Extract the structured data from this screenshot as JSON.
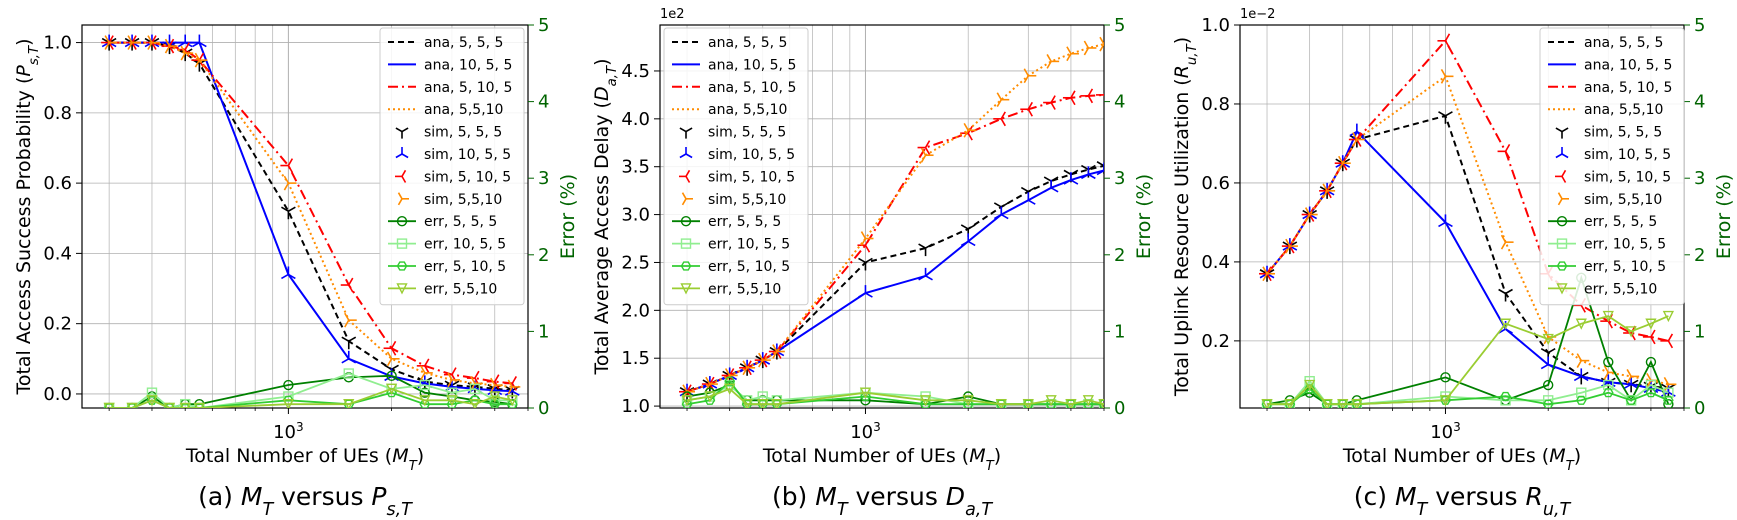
{
  "colors": {
    "ana_555": "#000000",
    "ana_1055": "#0000ff",
    "ana_5105": "#ff0000",
    "ana_5510": "#ff8c00",
    "err_555": "#008000",
    "err_1055": "#90ee90",
    "err_5105": "#32cd32",
    "err_5510": "#9acd32",
    "right_axis": "#006400",
    "grid": "#b0b0b0"
  },
  "legend_labels": [
    "ana, 5, 5, 5",
    "ana, 10, 5, 5",
    "ana, 5, 10, 5",
    "ana, 5,5,10",
    "sim, 5, 5, 5",
    "sim, 10, 5, 5",
    "sim, 5, 10, 5",
    "sim, 5,5,10",
    "err, 5, 5, 5",
    "err, 10, 5, 5",
    "err, 5, 10, 5",
    "err, 5,5,10"
  ],
  "chart_data": [
    {
      "type": "line",
      "caption": "(a) M_T versus P_s,T",
      "xlabel": "Total Number of UEs (M_T)",
      "ylabel": "Total Access Success Probability (P_s,T)",
      "y2label": "Error (%)",
      "xscale": "log",
      "xlim": [
        250,
        5000
      ],
      "xtick_label": "10^3",
      "ylim": [
        -0.04,
        1.05
      ],
      "yticks": [
        "0.0",
        "0.2",
        "0.4",
        "0.6",
        "0.8",
        "1.0"
      ],
      "y2lim": [
        0,
        5
      ],
      "y2ticks": [
        "0",
        "1",
        "2",
        "3",
        "4",
        "5"
      ],
      "y_offset": "",
      "grid": true,
      "legend": "top-right",
      "x": [
        300,
        350,
        400,
        450,
        500,
        550,
        1000,
        1500,
        2000,
        2500,
        3000,
        3500,
        4000,
        4500
      ],
      "series": [
        {
          "name": "ana, 5, 5, 5",
          "values": [
            1.0,
            1.0,
            1.0,
            0.99,
            0.97,
            0.94,
            0.52,
            0.15,
            0.07,
            0.035,
            0.025,
            0.02,
            0.015,
            0.01
          ]
        },
        {
          "name": "ana, 10, 5, 5",
          "values": [
            1.0,
            1.0,
            1.0,
            1.0,
            1.0,
            1.0,
            0.34,
            0.1,
            0.05,
            0.03,
            0.02,
            0.015,
            0.01,
            0.008
          ]
        },
        {
          "name": "ana, 5, 10, 5",
          "values": [
            1.0,
            1.0,
            1.0,
            0.99,
            0.98,
            0.95,
            0.65,
            0.31,
            0.13,
            0.08,
            0.055,
            0.045,
            0.035,
            0.03
          ]
        },
        {
          "name": "ana, 5,5,10",
          "values": [
            1.0,
            1.0,
            1.0,
            0.99,
            0.97,
            0.95,
            0.6,
            0.21,
            0.1,
            0.06,
            0.04,
            0.03,
            0.025,
            0.02
          ]
        },
        {
          "name": "err, 5, 5, 5",
          "axis": "right",
          "values": [
            0.0,
            0.0,
            0.15,
            0.0,
            0.05,
            0.05,
            0.3,
            0.4,
            0.42,
            0.2,
            0.15,
            0.1,
            0.08,
            0.05
          ]
        },
        {
          "name": "err, 10, 5, 5",
          "axis": "right",
          "values": [
            0.0,
            0.0,
            0.2,
            0.0,
            0.05,
            0.0,
            0.15,
            0.45,
            0.25,
            0.3,
            0.2,
            0.25,
            0.1,
            0.1
          ]
        },
        {
          "name": "err, 5, 10, 5",
          "axis": "right",
          "values": [
            0.0,
            0.0,
            0.1,
            0.0,
            0.0,
            0.0,
            0.1,
            0.05,
            0.2,
            0.05,
            0.05,
            0.1,
            0.05,
            0.05
          ]
        },
        {
          "name": "err, 5,5,10",
          "axis": "right",
          "values": [
            0.0,
            0.0,
            0.1,
            0.0,
            0.0,
            0.0,
            0.05,
            0.05,
            0.25,
            0.1,
            0.1,
            0.05,
            0.15,
            0.1
          ]
        }
      ]
    },
    {
      "type": "line",
      "caption": "(b) M_T versus D_a,T",
      "xlabel": "Total Number of UEs (M_T)",
      "ylabel": "Total Average Access Delay (D_a,T)",
      "y2label": "Error (%)",
      "xscale": "log",
      "xlim": [
        250,
        5000
      ],
      "xtick_label": "10^3",
      "ylim": [
        0.98,
        4.98
      ],
      "yticks": [
        "1.0",
        "1.5",
        "2.0",
        "2.5",
        "3.0",
        "3.5",
        "4.0",
        "4.5"
      ],
      "y2lim": [
        0,
        5
      ],
      "y2ticks": [
        "0",
        "1",
        "2",
        "3",
        "4",
        "5"
      ],
      "y_offset": "1e2",
      "grid": true,
      "legend": "top-left",
      "x": [
        300,
        350,
        400,
        450,
        500,
        550,
        1000,
        1500,
        2000,
        2500,
        3000,
        3500,
        4000,
        4500,
        5000
      ],
      "series": [
        {
          "name": "ana, 5, 5, 5",
          "values": [
            1.15,
            1.23,
            1.32,
            1.4,
            1.48,
            1.57,
            2.5,
            2.65,
            2.85,
            3.08,
            3.24,
            3.35,
            3.42,
            3.47,
            3.51
          ]
        },
        {
          "name": "ana, 10, 5, 5",
          "values": [
            1.15,
            1.23,
            1.32,
            1.4,
            1.48,
            1.57,
            2.18,
            2.36,
            2.72,
            3.0,
            3.15,
            3.28,
            3.36,
            3.42,
            3.46
          ]
        },
        {
          "name": "ana, 5, 10, 5",
          "values": [
            1.15,
            1.23,
            1.32,
            1.4,
            1.48,
            1.57,
            2.68,
            3.7,
            3.85,
            4.0,
            4.1,
            4.17,
            4.22,
            4.24,
            4.25
          ]
        },
        {
          "name": "ana, 5,5,10",
          "values": [
            1.15,
            1.23,
            1.32,
            1.4,
            1.48,
            1.57,
            2.75,
            3.62,
            3.88,
            4.2,
            4.45,
            4.6,
            4.68,
            4.74,
            4.78
          ]
        },
        {
          "name": "err, 5, 5, 5",
          "axis": "right",
          "values": [
            0.15,
            0.2,
            0.3,
            0.1,
            0.1,
            0.1,
            0.1,
            0.05,
            0.15,
            0.05,
            0.05,
            0.05,
            0.05,
            0.05,
            0.05
          ]
        },
        {
          "name": "err, 10, 5, 5",
          "axis": "right",
          "values": [
            0.1,
            0.15,
            0.3,
            0.1,
            0.15,
            0.1,
            0.2,
            0.15,
            0.05,
            0.05,
            0.05,
            0.05,
            0.05,
            0.05,
            0.05
          ]
        },
        {
          "name": "err, 5, 10, 5",
          "axis": "right",
          "values": [
            0.05,
            0.1,
            0.35,
            0.05,
            0.05,
            0.05,
            0.15,
            0.05,
            0.05,
            0.05,
            0.05,
            0.05,
            0.05,
            0.05,
            0.05
          ]
        },
        {
          "name": "err, 5,5,10",
          "axis": "right",
          "values": [
            0.1,
            0.15,
            0.25,
            0.05,
            0.05,
            0.05,
            0.2,
            0.1,
            0.1,
            0.05,
            0.05,
            0.1,
            0.05,
            0.1,
            0.05
          ]
        }
      ]
    },
    {
      "type": "line",
      "caption": "(c) M_T versus R_u,T",
      "xlabel": "Total Number of UEs (M_T)",
      "ylabel": "Total Uplink Resource Utilization (R_u,T)",
      "y2label": "Error (%)",
      "xscale": "log",
      "xlim": [
        250,
        5000
      ],
      "xtick_label": "10^3",
      "ylim": [
        0.03,
        1.0
      ],
      "yticks": [
        "0.2",
        "0.4",
        "0.6",
        "0.8",
        "1.0"
      ],
      "y2lim": [
        0,
        5
      ],
      "y2ticks": [
        "0",
        "1",
        "2",
        "3",
        "4",
        "5"
      ],
      "y_offset": "1e−2",
      "grid": true,
      "legend": "top-right",
      "x": [
        300,
        350,
        400,
        450,
        500,
        550,
        1000,
        1500,
        2000,
        2500,
        3000,
        3500,
        4000,
        4500
      ],
      "series": [
        {
          "name": "ana, 5, 5, 5",
          "values": [
            0.37,
            0.44,
            0.52,
            0.58,
            0.65,
            0.71,
            0.77,
            0.32,
            0.17,
            0.11,
            0.095,
            0.09,
            0.085,
            0.08
          ]
        },
        {
          "name": "ana, 10, 5, 5",
          "values": [
            0.37,
            0.44,
            0.52,
            0.58,
            0.65,
            0.73,
            0.5,
            0.23,
            0.14,
            0.11,
            0.095,
            0.09,
            0.08,
            0.07
          ]
        },
        {
          "name": "ana, 5, 10, 5",
          "values": [
            0.37,
            0.44,
            0.52,
            0.58,
            0.65,
            0.71,
            0.96,
            0.68,
            0.37,
            0.29,
            0.25,
            0.22,
            0.21,
            0.2
          ]
        },
        {
          "name": "ana, 5,5,10",
          "values": [
            0.37,
            0.44,
            0.52,
            0.58,
            0.65,
            0.71,
            0.87,
            0.45,
            0.21,
            0.15,
            0.12,
            0.11,
            0.1,
            0.09
          ]
        },
        {
          "name": "err, 5, 5, 5",
          "axis": "right",
          "values": [
            0.05,
            0.1,
            0.2,
            0.05,
            0.05,
            0.1,
            0.4,
            0.1,
            0.3,
            1.7,
            0.6,
            0.1,
            0.6,
            0.05
          ]
        },
        {
          "name": "err, 10, 5, 5",
          "axis": "right",
          "values": [
            0.05,
            0.05,
            0.35,
            0.05,
            0.05,
            0.05,
            0.15,
            0.1,
            0.1,
            0.2,
            0.3,
            0.1,
            0.3,
            0.2
          ]
        },
        {
          "name": "err, 5, 10, 5",
          "axis": "right",
          "values": [
            0.05,
            0.05,
            0.25,
            0.05,
            0.05,
            0.05,
            0.1,
            0.15,
            0.05,
            0.1,
            0.2,
            0.1,
            0.2,
            0.1
          ]
        },
        {
          "name": "err, 5,5,10",
          "axis": "right",
          "values": [
            0.05,
            0.05,
            0.3,
            0.05,
            0.05,
            0.05,
            0.1,
            1.1,
            0.9,
            1.1,
            1.2,
            1.0,
            1.1,
            1.2
          ]
        }
      ]
    }
  ]
}
